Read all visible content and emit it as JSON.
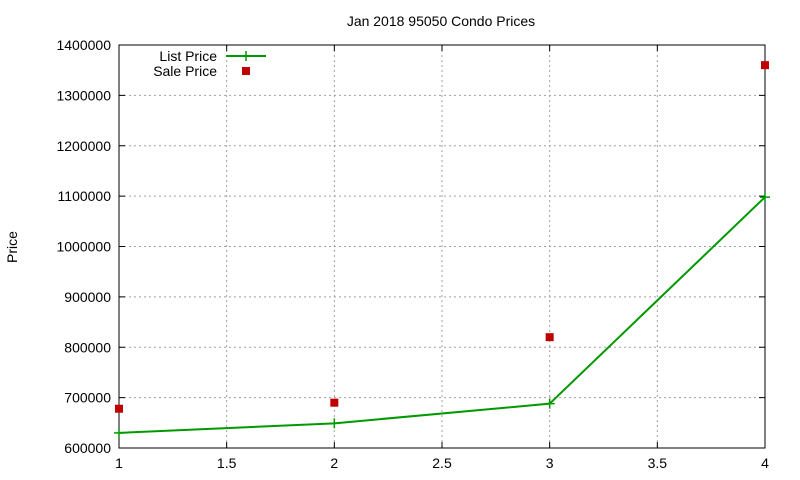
{
  "chart_data": {
    "type": "line",
    "title": "Jan 2018 95050 Condo Prices",
    "xlabel": "",
    "ylabel": "Price",
    "xlim": [
      1,
      4
    ],
    "ylim": [
      600000,
      1400000
    ],
    "x_ticks": [
      "1",
      "1.5",
      "2",
      "2.5",
      "3",
      "3.5",
      "4"
    ],
    "y_ticks": [
      "600000",
      "700000",
      "800000",
      "900000",
      "1000000",
      "1100000",
      "1200000",
      "1300000",
      "1400000"
    ],
    "grid": true,
    "legend_position": "top-left",
    "series": [
      {
        "name": "List Price",
        "style": "linespoints",
        "marker": "plus",
        "color": "#009900",
        "x": [
          1,
          2,
          3,
          4
        ],
        "y": [
          630000,
          649000,
          688000,
          1098000
        ]
      },
      {
        "name": "Sale Price",
        "style": "points",
        "marker": "square",
        "color": "#c00000",
        "x": [
          1,
          2,
          3,
          4
        ],
        "y": [
          678000,
          690000,
          820000,
          1360000
        ]
      }
    ]
  }
}
